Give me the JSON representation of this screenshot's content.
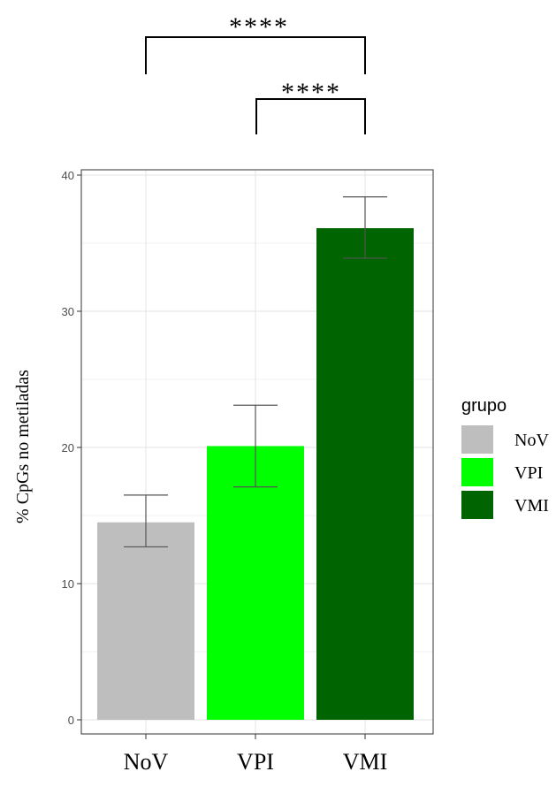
{
  "chart_data": {
    "type": "bar",
    "categories": [
      "NoV",
      "VPI",
      "VMI"
    ],
    "values": [
      14.5,
      20.1,
      36.1
    ],
    "error_low": [
      12.7,
      17.1,
      33.9
    ],
    "error_high": [
      16.5,
      23.1,
      38.4
    ],
    "colors": [
      "#bebebe",
      "#00ff00",
      "#006400"
    ],
    "ylabel": "% CpGs no metiladas",
    "xlabel": "",
    "ylim": [
      0,
      40
    ],
    "yticks": [
      0,
      10,
      20,
      30,
      40
    ],
    "grid": true,
    "legend": {
      "title": "grupo",
      "position": "right",
      "entries": [
        "NoV",
        "VPI",
        "VMI"
      ]
    },
    "annotations": [
      {
        "from": "NoV",
        "to": "VMI",
        "label": "****"
      },
      {
        "from": "VPI",
        "to": "VMI",
        "label": "****"
      }
    ]
  }
}
